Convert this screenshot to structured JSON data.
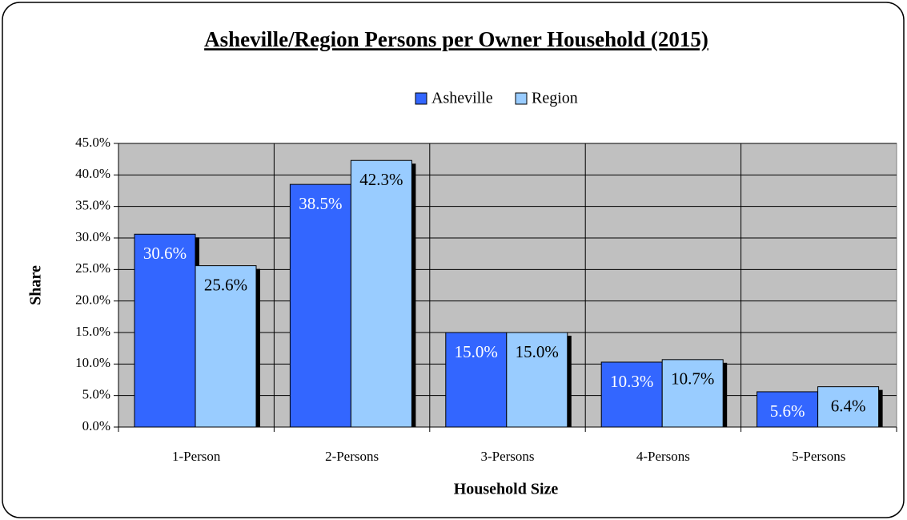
{
  "chart_data": {
    "type": "bar",
    "title": "Asheville/Region Persons per Owner Household (2015)",
    "x_label": "Household Size",
    "y_label": "Share",
    "categories": [
      "1-Person",
      "2-Persons",
      "3-Persons",
      "4-Persons",
      "5-Persons"
    ],
    "series": [
      {
        "name": "Asheville",
        "color": "#3366ff",
        "label_color": "#ffffff",
        "values": [
          30.6,
          38.5,
          15.0,
          10.3,
          5.6
        ],
        "value_labels": [
          "30.6%",
          "38.5%",
          "15.0%",
          "10.3%",
          "5.6%"
        ]
      },
      {
        "name": "Region",
        "color": "#99ccff",
        "label_color": "#000000",
        "values": [
          25.6,
          42.3,
          15.0,
          10.7,
          6.4
        ],
        "value_labels": [
          "25.6%",
          "42.3%",
          "15.0%",
          "10.7%",
          "6.4%"
        ]
      }
    ],
    "ylim": [
      0,
      45
    ],
    "yticks": [
      {
        "value": 0,
        "label": "0.0%"
      },
      {
        "value": 5,
        "label": "5.0%"
      },
      {
        "value": 10,
        "label": "10.0%"
      },
      {
        "value": 15,
        "label": "15.0%"
      },
      {
        "value": 20,
        "label": "20.0%"
      },
      {
        "value": 25,
        "label": "25.0%"
      },
      {
        "value": 30,
        "label": "30.0%"
      },
      {
        "value": 35,
        "label": "35.0%"
      },
      {
        "value": 40,
        "label": "40.0%"
      },
      {
        "value": 45,
        "label": "45.0%"
      }
    ],
    "grid": true,
    "legend": "top"
  }
}
